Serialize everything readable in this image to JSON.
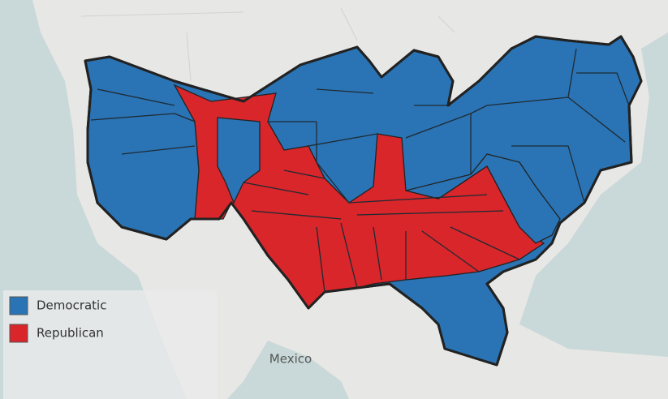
{
  "map": {
    "legend": [
      {
        "label": "Democratic",
        "color": "#2a74b5"
      },
      {
        "label": "Republican",
        "color": "#d8262a"
      }
    ],
    "places": [
      {
        "text": "Mexico"
      }
    ]
  }
}
